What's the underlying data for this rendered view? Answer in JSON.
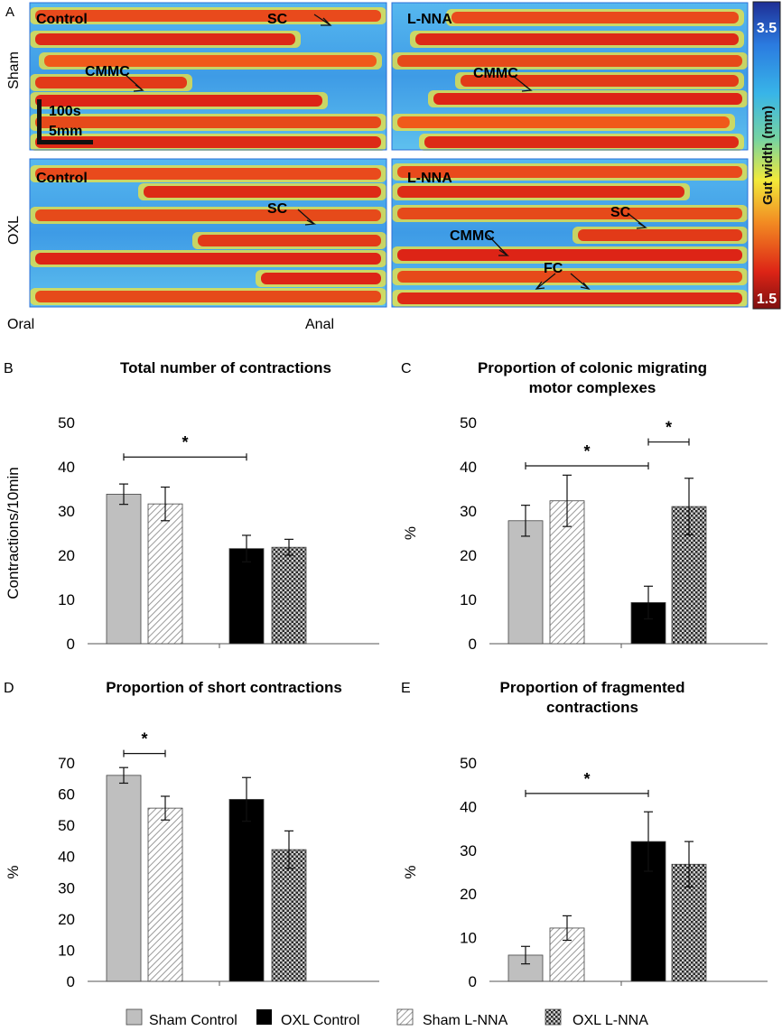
{
  "panel_a": {
    "letter": "A",
    "row_labels": [
      "Sham",
      "OXL"
    ],
    "panels": [
      {
        "title": "Control",
        "annotations": [
          "SC",
          "CMMC"
        ]
      },
      {
        "title": "L-NNA",
        "annotations": [
          "CMMC"
        ]
      },
      {
        "title": "Control",
        "annotations": [
          "SC"
        ]
      },
      {
        "title": "L-NNA",
        "annotations": [
          "SC",
          "CMMC",
          "FC"
        ]
      }
    ],
    "scale_bar": {
      "time": "100s",
      "length": "5mm"
    },
    "axis_labels": {
      "left": "Oral",
      "right": "Anal"
    },
    "colorbar": {
      "label": "Gut width (mm)",
      "max": "3.5",
      "min": "1.5",
      "colors": [
        "#1e2e95",
        "#2b7be0",
        "#38b5e8",
        "#78d4a0",
        "#f2ea3a",
        "#f28a22",
        "#dd2416",
        "#7f1010"
      ]
    }
  },
  "legend": {
    "items": [
      {
        "label": "Sham Control",
        "pattern": "gray"
      },
      {
        "label": "OXL Control",
        "pattern": "black"
      },
      {
        "label": "Sham L-NNA",
        "pattern": "hatch"
      },
      {
        "label": "OXL L-NNA",
        "pattern": "check"
      }
    ]
  },
  "chart_data": [
    {
      "panel": "B",
      "type": "bar",
      "title": [
        "Total number of contractions"
      ],
      "ylabel": "Contractions/10min",
      "ylim": [
        0,
        50
      ],
      "yticks": [
        0,
        10,
        20,
        30,
        40,
        50
      ],
      "series": [
        {
          "name": "Sham Control",
          "value": 33.8,
          "error": 2.3
        },
        {
          "name": "Sham L-NNA",
          "value": 31.6,
          "error": 3.8
        },
        {
          "name": "OXL Control",
          "value": 21.5,
          "error": 3.0
        },
        {
          "name": "OXL L-NNA",
          "value": 21.8,
          "error": 1.8
        }
      ],
      "significance": [
        {
          "from": "Sham Control",
          "to": "OXL Control",
          "y": 42.2,
          "label": "*"
        }
      ]
    },
    {
      "panel": "C",
      "type": "bar",
      "title": [
        "Proportion of colonic migrating",
        "motor complexes"
      ],
      "ylabel": "%",
      "ylim": [
        0,
        50
      ],
      "yticks": [
        0,
        10,
        20,
        30,
        40,
        50
      ],
      "series": [
        {
          "name": "Sham Control",
          "value": 27.8,
          "error": 3.5
        },
        {
          "name": "Sham L-NNA",
          "value": 32.3,
          "error": 5.8
        },
        {
          "name": "OXL Control",
          "value": 9.3,
          "error": 3.7
        },
        {
          "name": "OXL L-NNA",
          "value": 31.0,
          "error": 6.4
        }
      ],
      "significance": [
        {
          "from": "Sham Control",
          "to": "OXL Control",
          "y": 40.2,
          "label": "*"
        },
        {
          "from": "OXL Control",
          "to": "OXL L-NNA",
          "y": 45.6,
          "label": "*"
        }
      ]
    },
    {
      "panel": "D",
      "type": "bar",
      "title": [
        "Proportion of short contractions"
      ],
      "ylabel": "%",
      "ylim": [
        0,
        70
      ],
      "yticks": [
        0,
        10,
        20,
        30,
        40,
        50,
        60,
        70
      ],
      "series": [
        {
          "name": "Sham Control",
          "value": 66.0,
          "error": 2.5
        },
        {
          "name": "Sham L-NNA",
          "value": 55.5,
          "error": 3.8
        },
        {
          "name": "OXL Control",
          "value": 58.3,
          "error": 7.0
        },
        {
          "name": "OXL L-NNA",
          "value": 42.2,
          "error": 6.0
        }
      ],
      "significance": [
        {
          "from": "Sham Control",
          "to": "Sham L-NNA",
          "y": 73.0,
          "label": "*"
        }
      ]
    },
    {
      "panel": "E",
      "type": "bar",
      "title": [
        "Proportion of fragmented",
        "contractions"
      ],
      "ylabel": "%",
      "ylim": [
        0,
        50
      ],
      "yticks": [
        0,
        10,
        20,
        30,
        40,
        50
      ],
      "series": [
        {
          "name": "Sham Control",
          "value": 6.0,
          "error": 2.0
        },
        {
          "name": "Sham L-NNA",
          "value": 12.2,
          "error": 2.8
        },
        {
          "name": "OXL Control",
          "value": 32.0,
          "error": 6.8
        },
        {
          "name": "OXL L-NNA",
          "value": 26.8,
          "error": 5.2
        }
      ],
      "significance": [
        {
          "from": "Sham Control",
          "to": "OXL Control",
          "y": 43.0,
          "label": "*"
        }
      ]
    }
  ]
}
